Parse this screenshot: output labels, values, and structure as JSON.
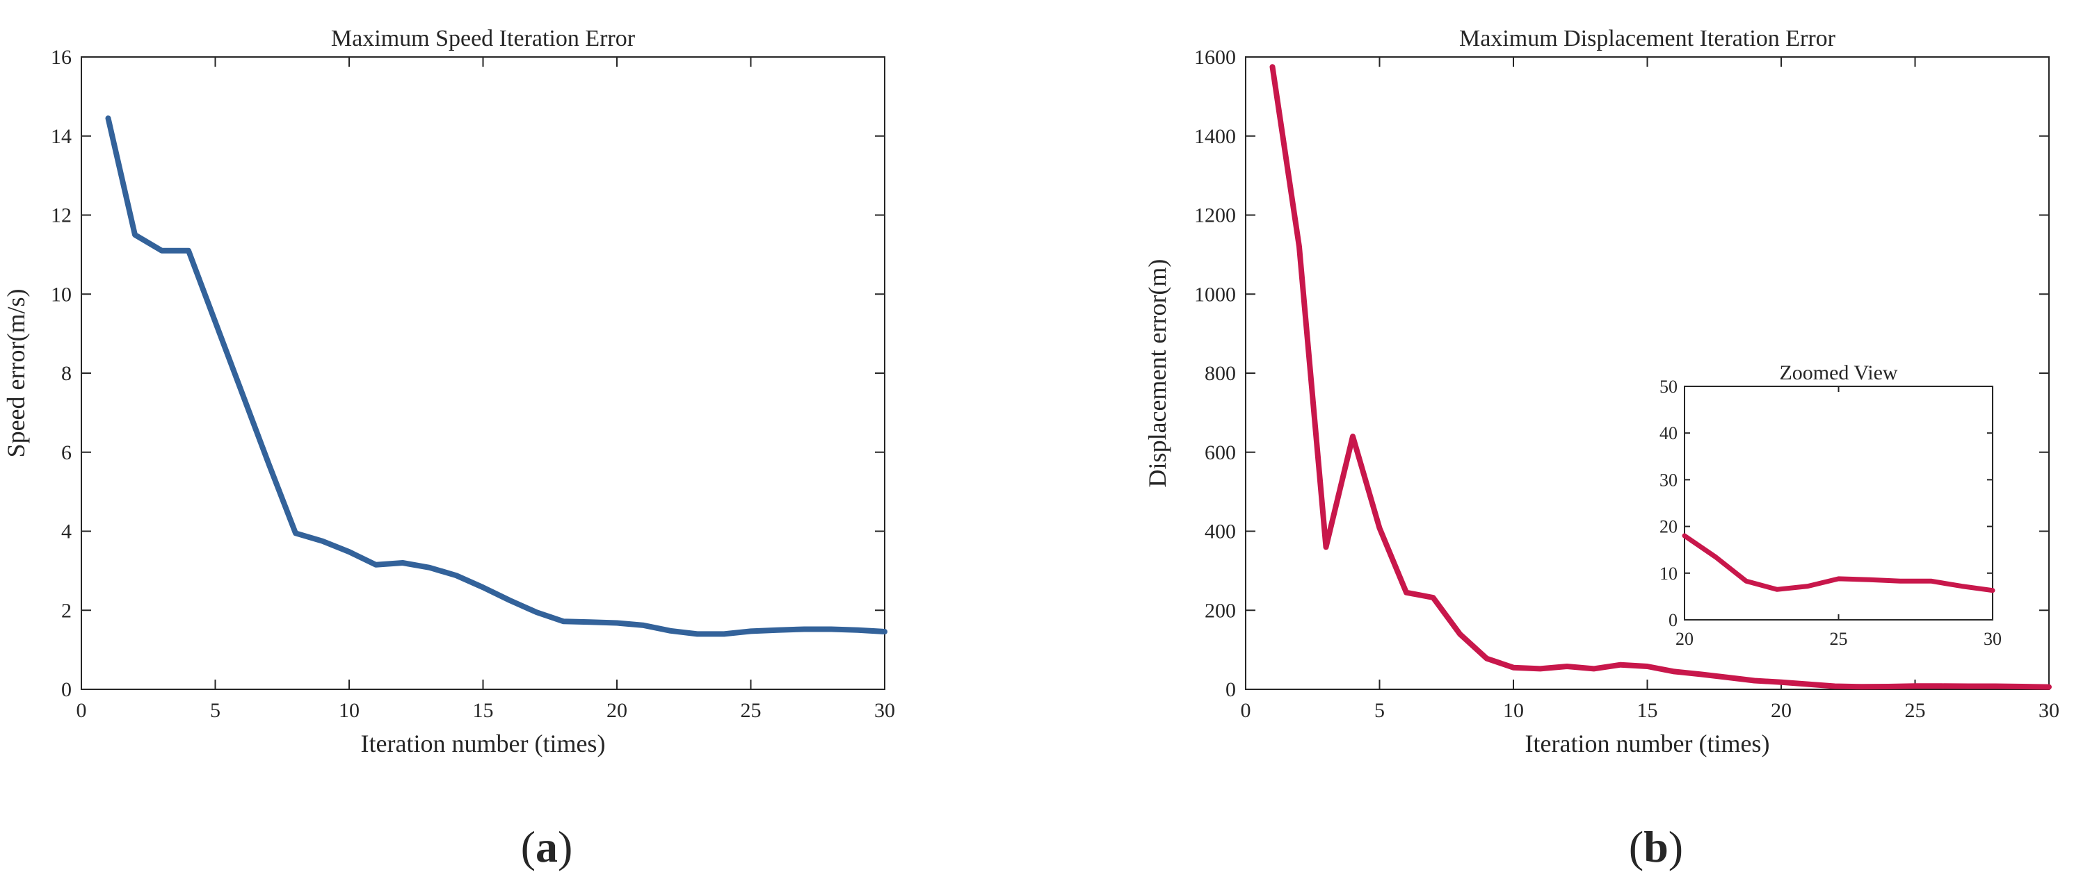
{
  "chart_data": [
    {
      "type": "line",
      "panel_label": "a",
      "title": "Maximum Speed Iteration Error",
      "xlabel": "Iteration number (times)",
      "ylabel": "Speed error(m/s)",
      "xlim": [
        0,
        30
      ],
      "ylim": [
        0,
        16
      ],
      "xticks": [
        0,
        5,
        10,
        15,
        20,
        25,
        30
      ],
      "yticks": [
        0,
        2,
        4,
        6,
        8,
        10,
        12,
        14,
        16
      ],
      "grid": false,
      "color": "#33629A",
      "series": [
        {
          "x": [
            1,
            2,
            3,
            4,
            5,
            6,
            7,
            8,
            9,
            10,
            11,
            12,
            13,
            14,
            15,
            16,
            17,
            18,
            19,
            20,
            21,
            22,
            23,
            24,
            25,
            26,
            27,
            28,
            29,
            30
          ],
          "values": [
            14.45,
            11.5,
            11.1,
            11.1,
            9.3,
            7.5,
            5.7,
            3.95,
            3.75,
            3.48,
            3.15,
            3.2,
            3.08,
            2.88,
            2.58,
            2.25,
            1.95,
            1.72,
            1.7,
            1.68,
            1.62,
            1.48,
            1.4,
            1.4,
            1.47,
            1.5,
            1.52,
            1.52,
            1.5,
            1.46
          ]
        }
      ]
    },
    {
      "type": "line",
      "panel_label": "b",
      "title": "Maximum Displacement Iteration Error",
      "xlabel": "Iteration number (times)",
      "ylabel": "Displacement error(m)",
      "xlim": [
        0,
        30
      ],
      "ylim": [
        0,
        1600
      ],
      "xticks": [
        0,
        5,
        10,
        15,
        20,
        25,
        30
      ],
      "yticks": [
        0,
        200,
        400,
        600,
        800,
        1000,
        1200,
        1400,
        1600
      ],
      "grid": false,
      "color": "#C8174B",
      "series": [
        {
          "x": [
            1,
            2,
            3,
            4,
            5,
            6,
            7,
            8,
            9,
            10,
            11,
            12,
            13,
            14,
            15,
            16,
            17,
            18,
            19,
            20,
            21,
            22,
            23,
            24,
            25,
            26,
            27,
            28,
            29,
            30
          ],
          "values": [
            1575,
            1120,
            360,
            640,
            408,
            245,
            232,
            140,
            78,
            55,
            52,
            58,
            52,
            62,
            58,
            45,
            38,
            30,
            22,
            18,
            13,
            8,
            6.5,
            7,
            8.5,
            8.3,
            8,
            8,
            7,
            6
          ]
        }
      ],
      "inset": {
        "title": "Zoomed View",
        "xlim": [
          20,
          30
        ],
        "ylim": [
          0,
          50
        ],
        "xticks": [
          20,
          25,
          30
        ],
        "yticks": [
          0,
          10,
          20,
          30,
          40,
          50
        ],
        "x": [
          20,
          21,
          22,
          23,
          24,
          25,
          26,
          27,
          28,
          29,
          30
        ],
        "values": [
          18,
          13.5,
          8.3,
          6.5,
          7.2,
          8.8,
          8.6,
          8.3,
          8.3,
          7.2,
          6.3
        ]
      }
    }
  ]
}
